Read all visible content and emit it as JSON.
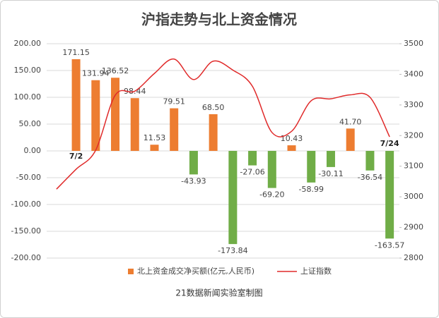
{
  "chart_data": {
    "type": "bar_line",
    "title": "沪指走势与北上资金情况",
    "footer": "21数据新闻实验室制图",
    "categories": [
      null,
      "7/2",
      null,
      null,
      null,
      null,
      null,
      null,
      null,
      null,
      null,
      null,
      null,
      null,
      null,
      null,
      null,
      "7/24"
    ],
    "series": [
      {
        "name": "北上资金成交净买额(亿元,人民币)",
        "type": "bar",
        "color": "#ed7d31",
        "negative_color": "#70ad47",
        "values": [
          null,
          171.15,
          131.94,
          136.52,
          98.44,
          11.53,
          79.51,
          -43.93,
          68.5,
          -173.84,
          -27.06,
          -69.2,
          10.43,
          -58.99,
          -30.11,
          41.7,
          -36.54,
          -163.57
        ],
        "value_labels": [
          null,
          "171.15",
          "131.94",
          "136.52",
          "98.44",
          "11.53",
          "79.51",
          "-43.93",
          "68.50",
          "-173.84",
          "-27.06",
          "-69.20",
          "10.43",
          "-58.99",
          "-30.11",
          "41.70",
          "-36.54",
          "-163.57"
        ]
      },
      {
        "name": "上证指数",
        "type": "line",
        "axis": "y2",
        "color": "#e02a2a",
        "values": [
          3025,
          3090,
          3152,
          3332,
          3345,
          3403,
          3450,
          3383,
          3443,
          3414,
          3361,
          3210,
          3214,
          3314,
          3320,
          3333,
          3325,
          3196
        ]
      }
    ],
    "ylim": [
      -200,
      200
    ],
    "yticks": [
      {
        "value": -200,
        "label": "-200.00"
      },
      {
        "value": -150,
        "label": "-150.00"
      },
      {
        "value": -100,
        "label": "-100.00"
      },
      {
        "value": -50,
        "label": "-50.00"
      },
      {
        "value": 0,
        "label": "0.00"
      },
      {
        "value": 50,
        "label": "50.00"
      },
      {
        "value": 100,
        "label": "100.00"
      },
      {
        "value": 150,
        "label": "150.00"
      },
      {
        "value": 200,
        "label": "200.00"
      }
    ],
    "y2lim": [
      2800,
      3500
    ],
    "y2ticks": [
      2800,
      2900,
      3000,
      3100,
      3200,
      3300,
      3400,
      3500
    ],
    "grid": true,
    "legend": "bottom"
  }
}
